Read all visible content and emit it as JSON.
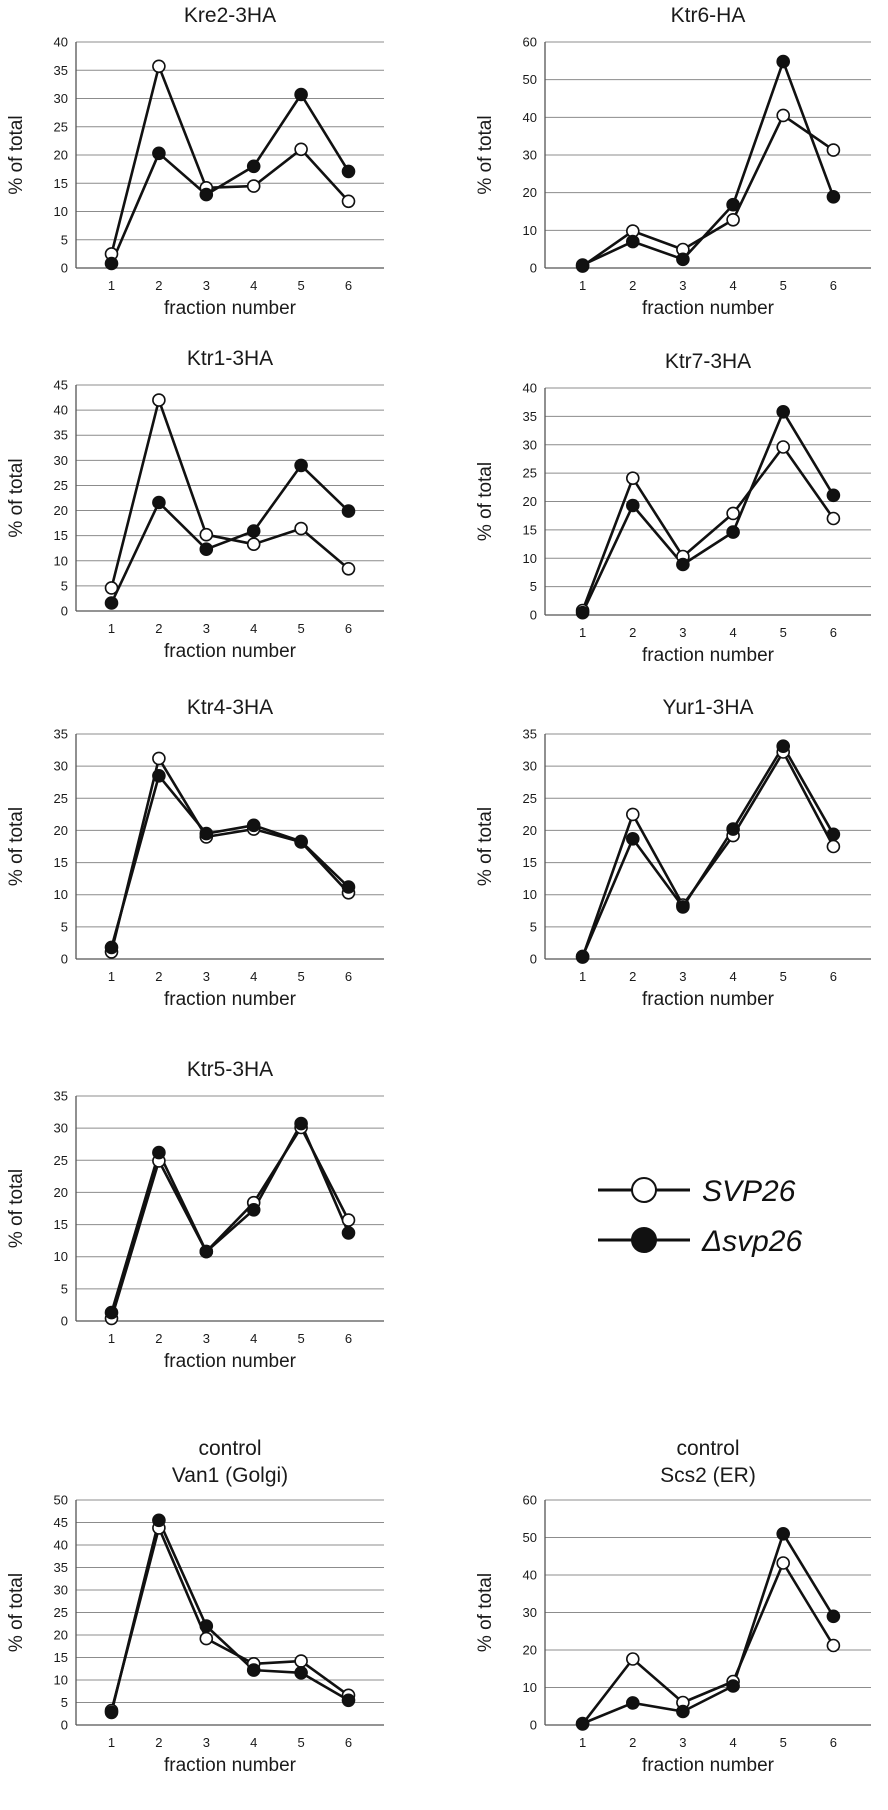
{
  "figure": {
    "legend": {
      "entries": [
        {
          "label": "SVP26",
          "marker": "open"
        },
        {
          "label": "Δsvp26",
          "marker": "filled"
        }
      ]
    }
  },
  "chart_data": [
    {
      "type": "line",
      "title": "Kre2-3HA",
      "xlabel": "fraction number",
      "ylabel": "% of total",
      "x": [
        1,
        2,
        3,
        4,
        5,
        6
      ],
      "ylim": [
        0,
        40
      ],
      "yticks": [
        0,
        5,
        10,
        15,
        20,
        25,
        30,
        35,
        40
      ],
      "grid": true,
      "series": [
        {
          "name": "SVP26",
          "marker": "open",
          "values": [
            2.5,
            35.7,
            14.2,
            14.5,
            21.0,
            11.8
          ]
        },
        {
          "name": "Δsvp26",
          "marker": "filled",
          "values": [
            0.8,
            20.3,
            13.0,
            18.0,
            30.7,
            17.1
          ]
        }
      ]
    },
    {
      "type": "line",
      "title": "Ktr6-HA",
      "xlabel": "fraction number",
      "ylabel": "% of total",
      "x": [
        1,
        2,
        3,
        4,
        5,
        6
      ],
      "ylim": [
        0,
        60
      ],
      "yticks": [
        0,
        10,
        20,
        30,
        40,
        50,
        60
      ],
      "grid": true,
      "series": [
        {
          "name": "SVP26",
          "marker": "open",
          "values": [
            0.5,
            9.8,
            4.9,
            12.8,
            40.5,
            31.3
          ]
        },
        {
          "name": "Δsvp26",
          "marker": "filled",
          "values": [
            0.8,
            7.0,
            2.3,
            16.8,
            54.8,
            18.9
          ]
        }
      ]
    },
    {
      "type": "line",
      "title": "Ktr1-3HA",
      "xlabel": "fraction number",
      "ylabel": "% of total",
      "x": [
        1,
        2,
        3,
        4,
        5,
        6
      ],
      "ylim": [
        0,
        45
      ],
      "yticks": [
        0,
        5,
        10,
        15,
        20,
        25,
        30,
        35,
        40,
        45
      ],
      "grid": true,
      "series": [
        {
          "name": "SVP26",
          "marker": "open",
          "values": [
            4.6,
            42.0,
            15.2,
            13.3,
            16.4,
            8.4
          ]
        },
        {
          "name": "Δsvp26",
          "marker": "filled",
          "values": [
            1.6,
            21.6,
            12.3,
            15.9,
            29.0,
            19.9
          ]
        }
      ]
    },
    {
      "type": "line",
      "title": "Ktr7-3HA",
      "xlabel": "fraction number",
      "ylabel": "% of total",
      "x": [
        1,
        2,
        3,
        4,
        5,
        6
      ],
      "ylim": [
        0,
        40
      ],
      "yticks": [
        0,
        5,
        10,
        15,
        20,
        25,
        30,
        35,
        40
      ],
      "grid": true,
      "series": [
        {
          "name": "SVP26",
          "marker": "open",
          "values": [
            0.8,
            24.1,
            10.3,
            17.9,
            29.6,
            17.0
          ]
        },
        {
          "name": "Δsvp26",
          "marker": "filled",
          "values": [
            0.4,
            19.3,
            8.9,
            14.6,
            35.8,
            21.1
          ]
        }
      ]
    },
    {
      "type": "line",
      "title": "Ktr4-3HA",
      "xlabel": "fraction number",
      "ylabel": "% of total",
      "x": [
        1,
        2,
        3,
        4,
        5,
        6
      ],
      "ylim": [
        0,
        35
      ],
      "yticks": [
        0,
        5,
        10,
        15,
        20,
        25,
        30,
        35
      ],
      "grid": true,
      "series": [
        {
          "name": "SVP26",
          "marker": "open",
          "values": [
            1.1,
            31.2,
            19.0,
            20.2,
            18.2,
            10.3
          ]
        },
        {
          "name": "Δsvp26",
          "marker": "filled",
          "values": [
            1.8,
            28.5,
            19.5,
            20.8,
            18.3,
            11.2
          ]
        }
      ]
    },
    {
      "type": "line",
      "title": "Yur1-3HA",
      "xlabel": "fraction number",
      "ylabel": "% of total",
      "x": [
        1,
        2,
        3,
        4,
        5,
        6
      ],
      "ylim": [
        0,
        35
      ],
      "yticks": [
        0,
        5,
        10,
        15,
        20,
        25,
        30,
        35
      ],
      "grid": true,
      "series": [
        {
          "name": "SVP26",
          "marker": "open",
          "values": [
            0.3,
            22.5,
            8.4,
            19.2,
            32.2,
            17.5
          ]
        },
        {
          "name": "Δsvp26",
          "marker": "filled",
          "values": [
            0.4,
            18.7,
            8.1,
            20.2,
            33.1,
            19.4
          ]
        }
      ]
    },
    {
      "type": "line",
      "title": "Ktr5-3HA",
      "xlabel": "fraction number",
      "ylabel": "% of total",
      "x": [
        1,
        2,
        3,
        4,
        5,
        6
      ],
      "ylim": [
        0,
        35
      ],
      "yticks": [
        0,
        5,
        10,
        15,
        20,
        25,
        30,
        35
      ],
      "grid": true,
      "series": [
        {
          "name": "SVP26",
          "marker": "open",
          "values": [
            0.4,
            24.9,
            10.8,
            18.4,
            30.1,
            15.7
          ]
        },
        {
          "name": "Δsvp26",
          "marker": "filled",
          "values": [
            1.3,
            26.2,
            10.8,
            17.3,
            30.7,
            13.7
          ]
        }
      ]
    },
    {
      "type": "line",
      "title": "control",
      "subtitle": "Van1 (Golgi)",
      "xlabel": "fraction number",
      "ylabel": "% of total",
      "x": [
        1,
        2,
        3,
        4,
        5,
        6
      ],
      "ylim": [
        0,
        50
      ],
      "yticks": [
        0,
        5,
        10,
        15,
        20,
        25,
        30,
        35,
        40,
        45,
        50
      ],
      "grid": true,
      "series": [
        {
          "name": "SVP26",
          "marker": "open",
          "values": [
            3.2,
            43.8,
            19.2,
            13.6,
            14.2,
            6.6
          ]
        },
        {
          "name": "Δsvp26",
          "marker": "filled",
          "values": [
            2.8,
            45.5,
            22.0,
            12.2,
            11.6,
            5.5
          ]
        }
      ]
    },
    {
      "type": "line",
      "title": "control",
      "subtitle": "Scs2 (ER)",
      "xlabel": "fraction number",
      "ylabel": "% of total",
      "x": [
        1,
        2,
        3,
        4,
        5,
        6
      ],
      "ylim": [
        0,
        60
      ],
      "yticks": [
        0,
        10,
        20,
        30,
        40,
        50,
        60
      ],
      "grid": true,
      "series": [
        {
          "name": "SVP26",
          "marker": "open",
          "values": [
            0.3,
            17.6,
            6.0,
            11.6,
            43.2,
            21.2
          ]
        },
        {
          "name": "Δsvp26",
          "marker": "filled",
          "values": [
            0.4,
            5.9,
            3.6,
            10.4,
            51.0,
            29.0
          ]
        }
      ]
    }
  ]
}
